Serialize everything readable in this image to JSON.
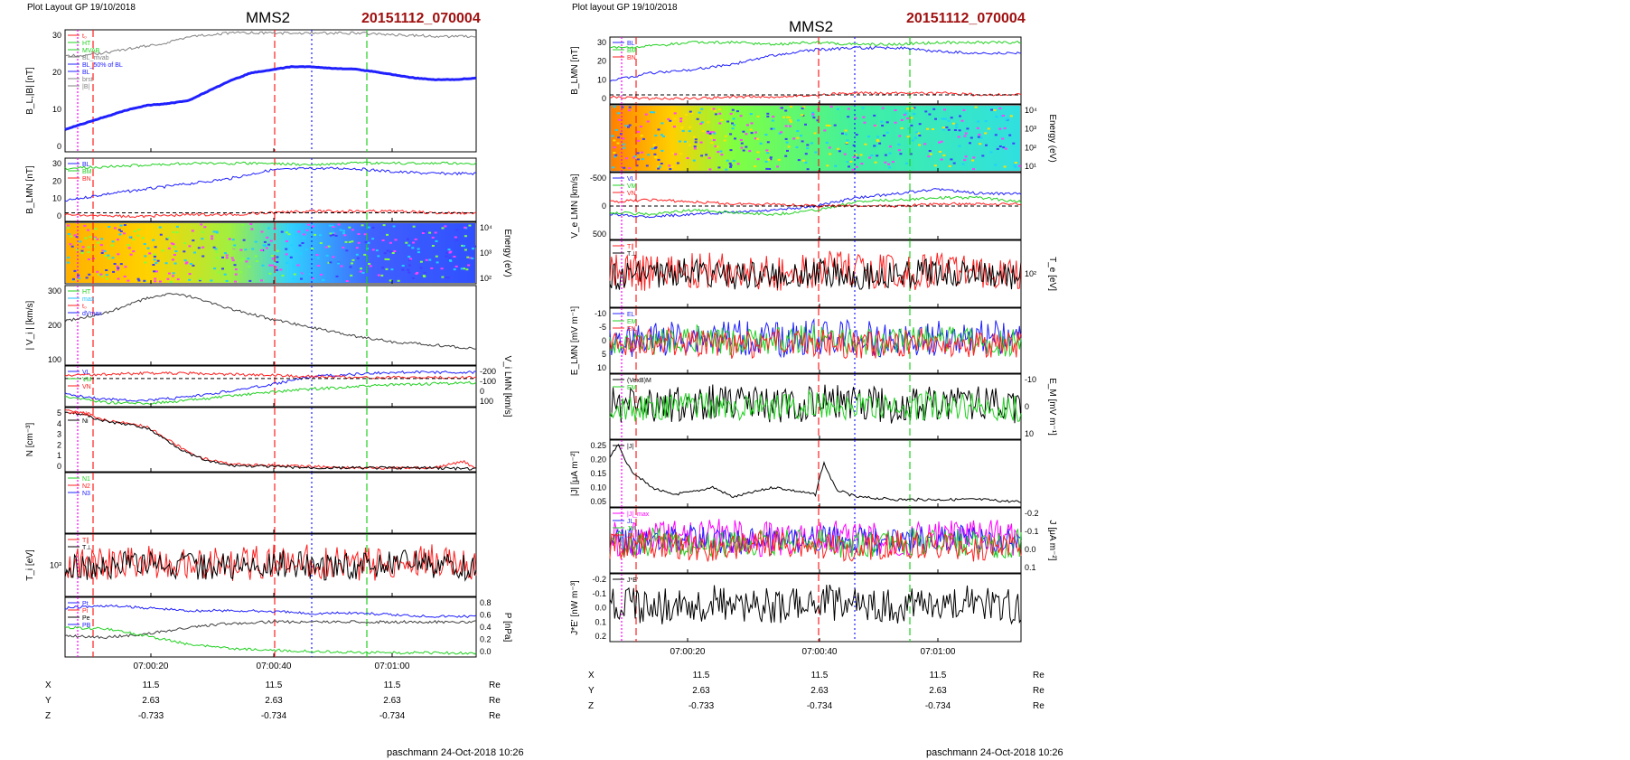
{
  "left_page": {
    "header": "Plot Layout GP 19/10/2018",
    "spacecraft": "MMS2",
    "event_id": "20151112_070004",
    "footer": "paschmann 24-Oct-2018 10:26",
    "time_ticks": [
      "07:00:20",
      "07:00:40",
      "07:01:00"
    ],
    "ephemeris": [
      {
        "label": "X",
        "values": [
          "11.5",
          "11.5",
          "11.5"
        ],
        "unit": "Re"
      },
      {
        "label": "Y",
        "values": [
          "2.63",
          "2.63",
          "2.63"
        ],
        "unit": "Re"
      },
      {
        "label": "Z",
        "values": [
          "-0.733",
          "-0.734",
          "-0.734"
        ],
        "unit": "Re"
      }
    ]
  },
  "right_page": {
    "header": "Plot layout GP 19/10/2018",
    "spacecraft": "MMS2",
    "event_id": "20151112_070004",
    "footer": "paschmann 24-Oct-2018 10:26",
    "time_ticks": [
      "07:00:20",
      "07:00:40",
      "07:01:00"
    ],
    "ephemeris": [
      {
        "label": "X",
        "values": [
          "11.5",
          "11.5",
          "11.5"
        ],
        "unit": "Re"
      },
      {
        "label": "Y",
        "values": [
          "2.63",
          "2.63",
          "2.63"
        ],
        "unit": "Re"
      },
      {
        "label": "Z",
        "values": [
          "-0.733",
          "-0.734",
          "-0.734"
        ],
        "unit": "Re"
      }
    ]
  },
  "colors": {
    "title_red": "#a01010",
    "red": "#ff2020",
    "green": "#20d020",
    "blue": "#2020ff",
    "black": "#000000",
    "gray": "#808080",
    "magenta": "#ff00ff",
    "cyan": "#20c0ff"
  },
  "chart_data": [
    {
      "type": "line",
      "page": "left",
      "panel": 1,
      "ylabel": "B_L,|B| [nT]",
      "ylim": [
        0,
        38
      ],
      "yticks": [
        "0",
        "10",
        "20",
        "30"
      ],
      "legend": [
        "t₀",
        "HT",
        "MVAB",
        "BL_mvab",
        "BL_50% of BL",
        "BL",
        "brst",
        "|B|"
      ],
      "series": [
        {
          "name": "|B|",
          "x": [
            0,
            0.05,
            0.1,
            0.15,
            0.2,
            0.25,
            0.3,
            0.4,
            0.5,
            0.6,
            0.7,
            0.8,
            0.9,
            1
          ],
          "values": [
            30,
            30,
            31,
            32,
            33,
            34,
            36,
            37,
            37,
            37,
            37,
            36.5,
            36,
            36
          ]
        },
        {
          "name": "BL",
          "x": [
            0,
            0.05,
            0.1,
            0.15,
            0.2,
            0.25,
            0.3,
            0.35,
            0.4,
            0.45,
            0.5,
            0.55,
            0.6,
            0.65,
            0.7,
            0.75,
            0.8,
            0.85,
            0.9,
            0.95,
            1
          ],
          "values": [
            7,
            9,
            11,
            13,
            14.5,
            15,
            16,
            19,
            22,
            24.5,
            25.5,
            26.5,
            26.5,
            26,
            25.8,
            25,
            24,
            23,
            22.5,
            22.5,
            23
          ]
        }
      ]
    },
    {
      "type": "line",
      "page": "left",
      "panel": 2,
      "ylabel": "B_LMN [nT]",
      "ylim": [
        -5,
        32
      ],
      "yticks": [
        "0",
        "10",
        "20",
        "30"
      ],
      "legend": [
        "BL",
        "BM",
        "BN"
      ],
      "series": [
        {
          "name": "BL",
          "x": [
            0,
            0.1,
            0.2,
            0.3,
            0.4,
            0.5,
            0.6,
            0.7,
            0.8,
            0.9,
            1
          ],
          "values": [
            7,
            11,
            14,
            17,
            20,
            25,
            26,
            26,
            24,
            23,
            23
          ]
        },
        {
          "name": "BM",
          "x": [
            0,
            0.1,
            0.2,
            0.3,
            0.4,
            0.5,
            0.6,
            0.7,
            0.8,
            0.9,
            1
          ],
          "values": [
            26,
            27,
            28,
            29,
            29,
            29,
            28,
            29,
            29,
            29,
            29
          ]
        },
        {
          "name": "BN",
          "x": [
            0,
            0.1,
            0.2,
            0.3,
            0.4,
            0.5,
            0.6,
            0.7,
            0.8,
            0.9,
            1
          ],
          "values": [
            -1,
            -2,
            -2,
            -1,
            -1,
            0,
            1,
            1,
            1,
            0,
            0
          ]
        }
      ]
    },
    {
      "type": "heatmap",
      "page": "left",
      "panel": 3,
      "ylabel": "Energy (eV)",
      "yticks": [
        "10²",
        "10³",
        "10⁴"
      ]
    },
    {
      "type": "line",
      "page": "left",
      "panel": 4,
      "ylabel": "| V_i | [km/s]",
      "ylim": [
        0,
        380
      ],
      "yticks": [
        "100",
        "200",
        "300"
      ],
      "legend": [
        "HT",
        "max",
        "t₀",
        "dVmax"
      ],
      "series": [
        {
          "name": "|Vi|",
          "x": [
            0,
            0.1,
            0.2,
            0.25,
            0.3,
            0.35,
            0.4,
            0.5,
            0.6,
            0.7,
            0.8,
            0.9,
            1
          ],
          "values": [
            210,
            250,
            320,
            340,
            330,
            300,
            270,
            220,
            180,
            140,
            110,
            95,
            80
          ]
        }
      ]
    },
    {
      "type": "line",
      "page": "left",
      "panel": 5,
      "ylabel": "V_i LMN [km/s]",
      "ylim": [
        -270,
        120
      ],
      "yticks": [
        "100",
        "0",
        "-100",
        "-200"
      ],
      "legend": [
        "VL",
        "VM",
        "VN"
      ],
      "series": [
        {
          "name": "VL",
          "x": [
            0,
            0.1,
            0.2,
            0.3,
            0.4,
            0.5,
            0.6,
            0.7,
            0.8,
            0.9,
            1
          ],
          "values": [
            -150,
            -200,
            -210,
            -180,
            -120,
            -60,
            20,
            40,
            60,
            60,
            60
          ]
        },
        {
          "name": "VM",
          "x": [
            0,
            0.1,
            0.2,
            0.3,
            0.4,
            0.5,
            0.6,
            0.7,
            0.8,
            0.9,
            1
          ],
          "values": [
            -170,
            -230,
            -240,
            -210,
            -170,
            -130,
            -100,
            -80,
            -60,
            -50,
            -40
          ]
        },
        {
          "name": "VN",
          "x": [
            0,
            0.1,
            0.2,
            0.3,
            0.4,
            0.5,
            0.6,
            0.7,
            0.8,
            0.9,
            1
          ],
          "values": [
            30,
            40,
            50,
            50,
            40,
            30,
            20,
            10,
            10,
            10,
            10
          ]
        }
      ]
    },
    {
      "type": "line",
      "page": "left",
      "panel": 6,
      "ylabel": "N [cm⁻³]",
      "ylim": [
        0,
        5
      ],
      "yticks": [
        "0",
        "1",
        "2",
        "3",
        "4",
        "5"
      ],
      "legend": [
        "Ne",
        "Ni"
      ],
      "series": [
        {
          "name": "Ne",
          "x": [
            0,
            0.05,
            0.1,
            0.15,
            0.2,
            0.25,
            0.3,
            0.35,
            0.4,
            0.5,
            0.6,
            0.7,
            0.8,
            0.9,
            0.97,
            1
          ],
          "values": [
            4.8,
            4.5,
            4.0,
            3.8,
            3.5,
            2.5,
            1.5,
            0.9,
            0.6,
            0.5,
            0.4,
            0.3,
            0.3,
            0.3,
            0.8,
            0.2
          ]
        },
        {
          "name": "Ni",
          "x": [
            0,
            0.05,
            0.1,
            0.15,
            0.2,
            0.25,
            0.3,
            0.35,
            0.4,
            0.5,
            0.6,
            0.7,
            0.8,
            0.9,
            1
          ],
          "values": [
            4.7,
            4.4,
            3.9,
            3.7,
            3.4,
            2.4,
            1.4,
            0.8,
            0.5,
            0.4,
            0.3,
            0.3,
            0.3,
            0.3,
            0.2
          ]
        }
      ]
    },
    {
      "type": "line",
      "page": "left",
      "panel": 7,
      "legend": [
        "N1",
        "N2",
        "N3"
      ]
    },
    {
      "type": "line",
      "page": "left",
      "panel": 8,
      "ylabel": "T_i [eV]",
      "yticks": [
        "10³"
      ],
      "legend": [
        "T∥",
        "T⊥"
      ],
      "series": [
        {
          "name": "T∥",
          "x": [
            0,
            0.1,
            0.2,
            0.3,
            0.4,
            0.5,
            0.6,
            0.7,
            0.8,
            0.9,
            0.95,
            1
          ],
          "values": [
            0.35,
            0.4,
            0.35,
            0.45,
            0.75,
            0.6,
            0.65,
            0.6,
            0.7,
            0.85,
            0.4,
            0.6
          ]
        },
        {
          "name": "T⊥",
          "x": [
            0,
            0.1,
            0.2,
            0.3,
            0.4,
            0.5,
            0.6,
            0.7,
            0.8,
            0.9,
            0.95,
            1
          ],
          "values": [
            0.35,
            0.38,
            0.35,
            0.4,
            0.6,
            0.58,
            0.6,
            0.58,
            0.68,
            0.82,
            0.35,
            0.55
          ]
        }
      ]
    },
    {
      "type": "line",
      "page": "left",
      "panel": 9,
      "ylabel": "P [nPa]",
      "ylim": [
        0,
        0.85
      ],
      "yticks": [
        "0.0",
        "0.2",
        "0.4",
        "0.6",
        "0.8"
      ],
      "legend": [
        "Pt",
        "Pi",
        "Pe",
        "PB"
      ],
      "series": [
        {
          "name": "Pt",
          "x": [
            0,
            0.1,
            0.2,
            0.3,
            0.4,
            0.5,
            0.6,
            0.7,
            0.8,
            0.9,
            1
          ],
          "values": [
            0.7,
            0.73,
            0.7,
            0.66,
            0.66,
            0.65,
            0.62,
            0.63,
            0.6,
            0.58,
            0.58
          ]
        },
        {
          "name": "PB",
          "x": [
            0,
            0.1,
            0.2,
            0.3,
            0.4,
            0.5,
            0.6,
            0.7,
            0.8,
            0.9,
            1
          ],
          "values": [
            0.3,
            0.28,
            0.33,
            0.42,
            0.48,
            0.5,
            0.5,
            0.5,
            0.5,
            0.5,
            0.5
          ]
        },
        {
          "name": "Pi",
          "x": [
            0,
            0.1,
            0.2,
            0.3,
            0.4,
            0.5,
            0.6,
            0.7,
            0.8,
            0.9,
            1
          ],
          "values": [
            0.42,
            0.4,
            0.3,
            0.18,
            0.12,
            0.1,
            0.08,
            0.07,
            0.06,
            0.06,
            0.05
          ]
        }
      ]
    },
    {
      "type": "line",
      "page": "right",
      "panel": 1,
      "ylabel": "B_LMN [nT]",
      "ylim": [
        -5,
        32
      ],
      "yticks": [
        "0",
        "10",
        "20",
        "30"
      ],
      "legend": [
        "BL",
        "BM",
        "BN"
      ],
      "series": [
        {
          "name": "BM",
          "x": [
            0,
            0.1,
            0.2,
            0.3,
            0.4,
            0.5,
            0.6,
            0.7,
            0.8,
            0.9,
            1
          ],
          "values": [
            26,
            27,
            29,
            29,
            28,
            29,
            28,
            28,
            29,
            29,
            29
          ]
        },
        {
          "name": "BL",
          "x": [
            0,
            0.1,
            0.2,
            0.3,
            0.4,
            0.5,
            0.6,
            0.7,
            0.8,
            0.9,
            1
          ],
          "values": [
            8,
            12,
            14,
            17,
            22,
            25,
            26,
            26,
            24,
            23,
            23
          ]
        },
        {
          "name": "BN",
          "x": [
            0,
            0.1,
            0.2,
            0.3,
            0.4,
            0.5,
            0.6,
            0.7,
            0.8,
            0.9,
            1
          ],
          "values": [
            -1,
            -2,
            -2,
            -1,
            -1,
            0,
            1,
            1,
            1,
            0,
            0
          ]
        }
      ]
    },
    {
      "type": "heatmap",
      "page": "right",
      "panel": 2,
      "ylabel": "Energy (eV)",
      "yticks": [
        "10¹",
        "10²",
        "10³",
        "10⁴"
      ]
    },
    {
      "type": "line",
      "page": "right",
      "panel": 3,
      "ylabel": "V_e LMN [km/s]",
      "ylim": [
        -800,
        800
      ],
      "yticks": [
        "500",
        "0",
        "-500"
      ],
      "legend": [
        "VL",
        "VM",
        "VN"
      ],
      "series": [
        {
          "name": "VL",
          "x": [
            0,
            0.1,
            0.2,
            0.3,
            0.4,
            0.5,
            0.6,
            0.7,
            0.8,
            0.9,
            1
          ],
          "values": [
            -200,
            -250,
            -200,
            -150,
            -100,
            0,
            200,
            300,
            400,
            300,
            300
          ]
        },
        {
          "name": "VM",
          "x": [
            0,
            0.1,
            0.2,
            0.3,
            0.4,
            0.5,
            0.6,
            0.7,
            0.8,
            0.9,
            1
          ],
          "values": [
            -150,
            -200,
            -100,
            -150,
            -200,
            -100,
            100,
            150,
            200,
            200,
            100
          ]
        },
        {
          "name": "VN",
          "x": [
            0,
            0.1,
            0.2,
            0.3,
            0.4,
            0.5,
            0.6,
            0.7,
            0.8,
            0.9,
            1
          ],
          "values": [
            100,
            150,
            100,
            50,
            50,
            0,
            0,
            0,
            50,
            50,
            50
          ]
        }
      ]
    },
    {
      "type": "line",
      "page": "right",
      "panel": 4,
      "ylabel": "T_e [eV]",
      "yticks": [
        "10²"
      ],
      "legend": [
        "T∥",
        "T⊥"
      ],
      "series": [
        {
          "name": "T∥",
          "x": [
            0,
            0.1,
            0.2,
            0.3,
            0.4,
            0.5,
            0.6,
            0.7,
            0.8,
            0.9,
            1
          ],
          "values": [
            0.55,
            0.5,
            0.3,
            0.35,
            0.45,
            0.5,
            0.6,
            0.65,
            0.55,
            0.5,
            0.45
          ]
        },
        {
          "name": "T⊥",
          "x": [
            0,
            0.1,
            0.2,
            0.3,
            0.4,
            0.5,
            0.6,
            0.7,
            0.8,
            0.9,
            1
          ],
          "values": [
            0.4,
            0.35,
            0.25,
            0.3,
            0.4,
            0.45,
            0.55,
            0.7,
            0.75,
            0.75,
            0.7
          ]
        }
      ]
    },
    {
      "type": "line",
      "page": "right",
      "panel": 5,
      "ylabel": "E_LMN [mV m⁻¹]",
      "ylim": [
        -15,
        12
      ],
      "yticks": [
        "10",
        "5",
        "0",
        "-5",
        "-10"
      ],
      "legend": [
        "EL",
        "EM",
        "EN"
      ]
    },
    {
      "type": "line",
      "page": "right",
      "panel": 6,
      "ylabel": "E_M [mV m⁻¹]",
      "ylim": [
        -15,
        15
      ],
      "yticks": [
        "10",
        "0",
        "-10"
      ],
      "legend": [
        "(VexB)M",
        "EM"
      ]
    },
    {
      "type": "line",
      "page": "right",
      "panel": 7,
      "ylabel": "|J| [μA m⁻²]",
      "ylim": [
        0,
        0.27
      ],
      "yticks": [
        "0.05",
        "0.10",
        "0.15",
        "0.20",
        "0.25"
      ],
      "legend": [
        "|J|"
      ],
      "series": [
        {
          "name": "|J|",
          "x": [
            0,
            0.02,
            0.05,
            0.1,
            0.15,
            0.2,
            0.25,
            0.3,
            0.4,
            0.5,
            0.52,
            0.55,
            0.6,
            0.7,
            0.8,
            0.9,
            1
          ],
          "values": [
            0.2,
            0.25,
            0.15,
            0.08,
            0.05,
            0.06,
            0.08,
            0.04,
            0.08,
            0.05,
            0.18,
            0.07,
            0.04,
            0.03,
            0.03,
            0.03,
            0.02
          ]
        }
      ]
    },
    {
      "type": "line",
      "page": "right",
      "panel": 8,
      "ylabel": "J [μA m⁻²]",
      "ylim": [
        -0.28,
        0.15
      ],
      "yticks": [
        "0.1",
        "0.0",
        "-0.1",
        "-0.2"
      ],
      "legend": [
        "|J|_max",
        "JL",
        "JM",
        "JN"
      ]
    },
    {
      "type": "line",
      "page": "right",
      "panel": 9,
      "ylabel": "J*E' [nW m⁻³]",
      "ylim": [
        -0.28,
        0.22
      ],
      "yticks": [
        "0.2",
        "0.1",
        "0.0",
        "-0.1",
        "-0.2"
      ],
      "legend": [
        "J*E'"
      ]
    }
  ]
}
